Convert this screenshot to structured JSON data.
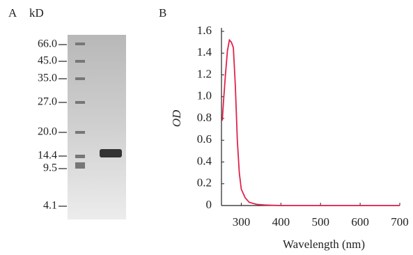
{
  "panel_a": {
    "label": "A",
    "unit": "kD",
    "markers": [
      "66.0",
      "45.0",
      "35.0",
      "27.0",
      "20.0",
      "14.4",
      "9.5",
      "4.1"
    ]
  },
  "chart_data": {
    "type": "line",
    "label": "B",
    "x_label": "Wavelength (nm)",
    "y_label": "OD",
    "x": [
      252,
      255,
      260,
      265,
      270,
      275,
      280,
      285,
      290,
      295,
      300,
      310,
      320,
      340,
      360,
      400,
      500,
      600,
      700
    ],
    "values": [
      0.78,
      0.95,
      1.2,
      1.42,
      1.52,
      1.5,
      1.45,
      1.1,
      0.6,
      0.3,
      0.15,
      0.07,
      0.03,
      0.01,
      0.005,
      0,
      0,
      0,
      0
    ],
    "color": "#e0224a",
    "xlim": [
      250,
      700
    ],
    "ylim": [
      0,
      1.6
    ],
    "xticks": [
      300,
      400,
      500,
      600,
      700
    ],
    "yticks": [
      0,
      0.2,
      0.4,
      0.6,
      0.8,
      {
        "value": 1,
        "label": "1.0"
      },
      1.2,
      1.4,
      1.6
    ]
  }
}
